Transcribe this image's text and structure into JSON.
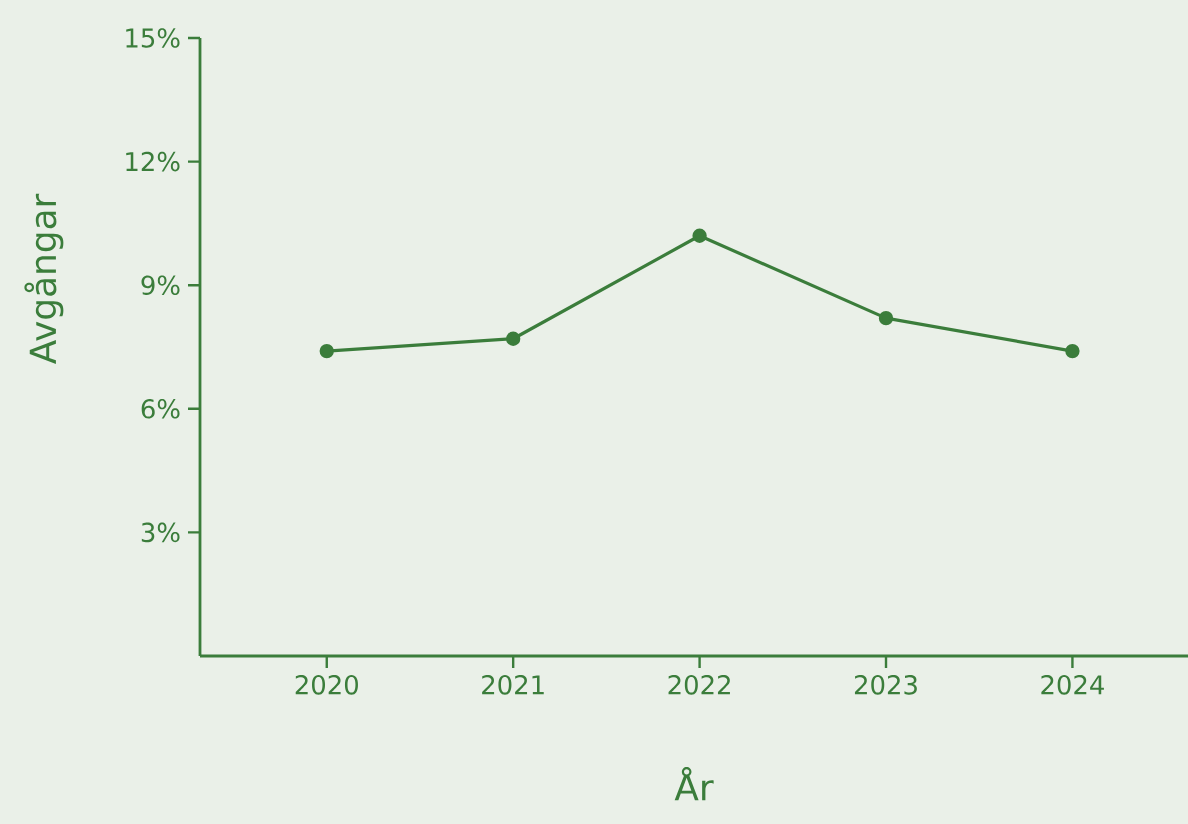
{
  "chart_data": {
    "type": "line",
    "xlabel": "År",
    "ylabel": "Avgångar",
    "categories": [
      "2020",
      "2021",
      "2022",
      "2023",
      "2024"
    ],
    "series": [
      {
        "color": "#3b7d3b",
        "values": [
          7.4,
          7.7,
          10.2,
          8.2,
          7.4
        ]
      }
    ],
    "ylim": [
      0,
      15
    ],
    "yticks": [
      {
        "value": 3,
        "label": "3%"
      },
      {
        "value": 6,
        "label": "6%"
      },
      {
        "value": 9,
        "label": "9%"
      },
      {
        "value": 12,
        "label": "12%"
      },
      {
        "value": 15,
        "label": "15%"
      }
    ],
    "grid": false,
    "marker": "circle",
    "line_style": "solid"
  }
}
